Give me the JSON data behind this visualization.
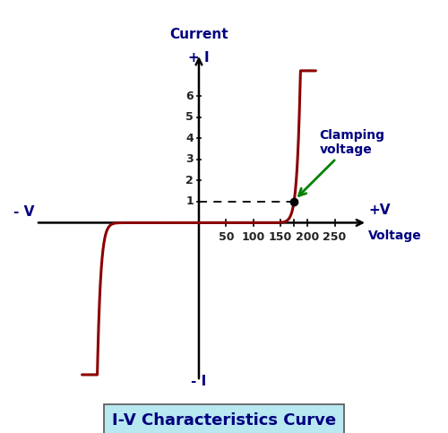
{
  "title": "I-V Characteristics Curve",
  "title_color": "#000080",
  "title_fontsize": 13,
  "curve_color": "#8B0000",
  "curve_linewidth": 2.2,
  "axis_color": "#000000",
  "label_color": "#000080",
  "clamping_label": "Clamping\nvoltage",
  "clamping_color": "#000080",
  "arrow_color": "#008000",
  "clamp_voltage": 175,
  "clamp_current": 1.0,
  "background_color": "#ffffff",
  "box_color": "#b8e8f0",
  "ytick_labels": [
    "1",
    "2",
    "3",
    "4",
    "5",
    "6"
  ],
  "xtick_labels": [
    "50",
    "100",
    "150",
    "200",
    "250"
  ],
  "xtick_values": [
    50,
    100,
    150,
    200,
    250
  ],
  "ytick_values": [
    1,
    2,
    3,
    4,
    5,
    6
  ],
  "xlim": [
    -300,
    310
  ],
  "ylim": [
    -7.5,
    8.5
  ],
  "alpha_exp": 30
}
